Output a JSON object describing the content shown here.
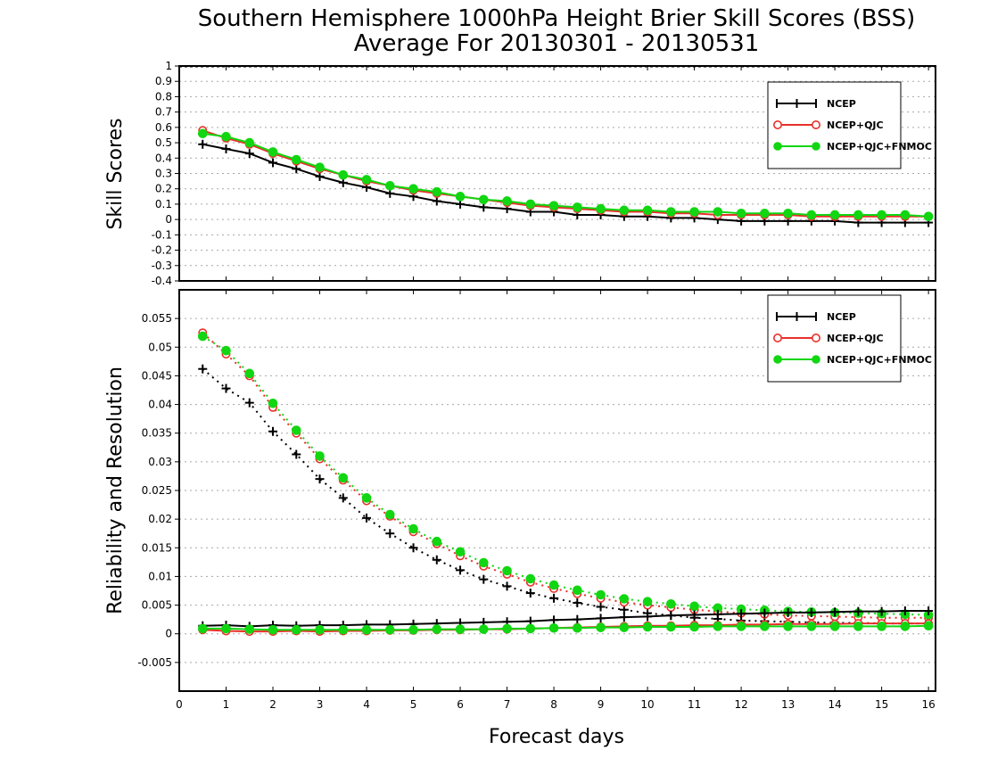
{
  "title": {
    "line1": "Southern Hemisphere 1000hPa Height Brier Skill Scores (BSS)",
    "line2": "Average For 20130301 - 20130531"
  },
  "xlabel": "Forecast days",
  "colors": {
    "NCEP": "#000000",
    "NCEP+QJC": "#e8302a",
    "NCEP+QJC+FNMOC": "#11d611",
    "grid": "#a6a6a6"
  },
  "chart_data": [
    {
      "type": "line",
      "title": "",
      "xlabel": "Forecast days",
      "ylabel": "Skill Scores",
      "xlim": [
        0,
        16.15
      ],
      "ylim": [
        -0.4,
        1.0
      ],
      "xticks": [
        "0",
        "1",
        "2",
        "3",
        "4",
        "5",
        "6",
        "7",
        "8",
        "9",
        "10",
        "11",
        "12",
        "13",
        "14",
        "15",
        "16"
      ],
      "yticks": [
        "-0.4",
        "-0.3",
        "-0.2",
        "-0.1",
        "0",
        "0.1",
        "0.2",
        "0.3",
        "0.4",
        "0.5",
        "0.6",
        "0.7",
        "0.8",
        "0.9",
        "1"
      ],
      "grid": true,
      "legend_placement": "top-right",
      "x": [
        0.5,
        1,
        1.5,
        2,
        2.5,
        3,
        3.5,
        4,
        4.5,
        5,
        5.5,
        6,
        6.5,
        7,
        7.5,
        8,
        8.5,
        9,
        9.5,
        10,
        10.5,
        11,
        11.5,
        12,
        12.5,
        13,
        13.5,
        14,
        14.5,
        15,
        15.5,
        16
      ],
      "series": [
        {
          "name": "NCEP",
          "marker": "plus",
          "style": "solid",
          "values": [
            0.49,
            0.46,
            0.43,
            0.37,
            0.33,
            0.28,
            0.24,
            0.21,
            0.17,
            0.15,
            0.12,
            0.1,
            0.08,
            0.07,
            0.05,
            0.05,
            0.03,
            0.03,
            0.02,
            0.02,
            0.01,
            0.01,
            0.0,
            -0.01,
            -0.01,
            -0.01,
            -0.01,
            -0.01,
            -0.02,
            -0.02,
            -0.02,
            -0.02
          ]
        },
        {
          "name": "NCEP+QJC",
          "marker": "open-circle",
          "style": "solid",
          "values": [
            0.58,
            0.53,
            0.49,
            0.43,
            0.38,
            0.33,
            0.29,
            0.25,
            0.22,
            0.19,
            0.17,
            0.15,
            0.13,
            0.11,
            0.09,
            0.08,
            0.07,
            0.06,
            0.05,
            0.05,
            0.04,
            0.04,
            0.03,
            0.03,
            0.03,
            0.03,
            0.02,
            0.02,
            0.02,
            0.02,
            0.02,
            0.02
          ]
        },
        {
          "name": "NCEP+QJC+FNMOC",
          "marker": "filled-circle",
          "style": "solid",
          "values": [
            0.56,
            0.54,
            0.5,
            0.44,
            0.39,
            0.34,
            0.29,
            0.26,
            0.22,
            0.2,
            0.18,
            0.15,
            0.13,
            0.12,
            0.1,
            0.09,
            0.08,
            0.07,
            0.06,
            0.06,
            0.05,
            0.05,
            0.05,
            0.04,
            0.04,
            0.04,
            0.03,
            0.03,
            0.03,
            0.03,
            0.03,
            0.02
          ]
        }
      ]
    },
    {
      "type": "line",
      "title": "",
      "xlabel": "Forecast days",
      "ylabel": "Reliability and Resolution",
      "xlim": [
        0,
        16.15
      ],
      "ylim": [
        -0.01,
        0.06
      ],
      "xticks": [
        "0",
        "1",
        "2",
        "3",
        "4",
        "5",
        "6",
        "7",
        "8",
        "9",
        "10",
        "11",
        "12",
        "13",
        "14",
        "15",
        "16"
      ],
      "yticks": [
        "-0.005",
        "0",
        "0.005",
        "0.01",
        "0.015",
        "0.02",
        "0.025",
        "0.03",
        "0.035",
        "0.04",
        "0.045",
        "0.05",
        "0.055"
      ],
      "grid": true,
      "legend_placement": "top-right",
      "x": [
        0.5,
        1,
        1.5,
        2,
        2.5,
        3,
        3.5,
        4,
        4.5,
        5,
        5.5,
        6,
        6.5,
        7,
        7.5,
        8,
        8.5,
        9,
        9.5,
        10,
        10.5,
        11,
        11.5,
        12,
        12.5,
        13,
        13.5,
        14,
        14.5,
        15,
        15.5,
        16
      ],
      "series": [
        {
          "name": "NCEP",
          "marker": "plus",
          "style": "dotted",
          "values": [
            0.0462,
            0.0428,
            0.0403,
            0.0353,
            0.0313,
            0.027,
            0.0237,
            0.0202,
            0.0175,
            0.015,
            0.0129,
            0.0111,
            0.0095,
            0.0083,
            0.0071,
            0.0062,
            0.0054,
            0.0047,
            0.0042,
            0.0036,
            0.0032,
            0.0028,
            0.0026,
            0.0023,
            0.0022,
            0.0021,
            0.002,
            0.0019,
            0.0019,
            0.0018,
            0.0018,
            0.0018
          ]
        },
        {
          "name": "NCEP+QJC",
          "marker": "open-circle",
          "style": "dotted",
          "values": [
            0.0525,
            0.0488,
            0.045,
            0.0395,
            0.035,
            0.0305,
            0.0268,
            0.0232,
            0.0205,
            0.0178,
            0.0157,
            0.0136,
            0.0118,
            0.0104,
            0.009,
            0.0079,
            0.007,
            0.0062,
            0.0055,
            0.005,
            0.0046,
            0.0042,
            0.0039,
            0.0036,
            0.0034,
            0.0032,
            0.0031,
            0.003,
            0.0029,
            0.0028,
            0.0028,
            0.0028
          ]
        },
        {
          "name": "NCEP+QJC+FNMOC",
          "marker": "filled-circle",
          "style": "dotted",
          "values": [
            0.0519,
            0.0494,
            0.0454,
            0.0402,
            0.0355,
            0.031,
            0.0272,
            0.0237,
            0.0208,
            0.0183,
            0.0161,
            0.0143,
            0.0124,
            0.011,
            0.0096,
            0.0085,
            0.0076,
            0.0068,
            0.0061,
            0.0056,
            0.0052,
            0.0048,
            0.0045,
            0.0043,
            0.0041,
            0.0039,
            0.0038,
            0.0037,
            0.0036,
            0.0035,
            0.0034,
            0.0033
          ]
        },
        {
          "name": "NCEP",
          "marker": "plus",
          "style": "solid",
          "values": [
            0.0014,
            0.0015,
            0.0013,
            0.0015,
            0.0014,
            0.0015,
            0.0015,
            0.0016,
            0.0016,
            0.0017,
            0.0018,
            0.0019,
            0.002,
            0.0021,
            0.0022,
            0.0024,
            0.0025,
            0.0027,
            0.0029,
            0.003,
            0.0032,
            0.0033,
            0.0034,
            0.0035,
            0.0036,
            0.0037,
            0.0037,
            0.0038,
            0.0039,
            0.0039,
            0.004,
            0.004
          ]
        },
        {
          "name": "NCEP+QJC",
          "marker": "open-circle",
          "style": "solid",
          "values": [
            0.0007,
            0.0005,
            0.0004,
            0.0004,
            0.0005,
            0.0004,
            0.0005,
            0.0005,
            0.0006,
            0.0006,
            0.0007,
            0.0007,
            0.0008,
            0.0008,
            0.0009,
            0.001,
            0.0011,
            0.0012,
            0.0013,
            0.0014,
            0.0014,
            0.0015,
            0.0015,
            0.0016,
            0.0016,
            0.0017,
            0.0017,
            0.0017,
            0.0018,
            0.0018,
            0.0018,
            0.0018
          ]
        },
        {
          "name": "NCEP+QJC+FNMOC",
          "marker": "filled-circle",
          "style": "solid",
          "values": [
            0.0009,
            0.0009,
            0.0008,
            0.0007,
            0.0007,
            0.0007,
            0.0007,
            0.0007,
            0.0007,
            0.0007,
            0.0008,
            0.0008,
            0.0008,
            0.0009,
            0.0009,
            0.001,
            0.001,
            0.0011,
            0.0011,
            0.0012,
            0.0012,
            0.0012,
            0.0013,
            0.0013,
            0.0013,
            0.0013,
            0.0013,
            0.0013,
            0.0013,
            0.0013,
            0.0013,
            0.0014
          ]
        }
      ]
    }
  ]
}
